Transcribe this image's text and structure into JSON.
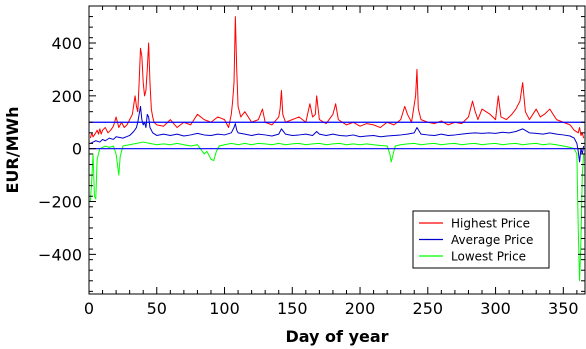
{
  "chart_data": {
    "type": "line",
    "title": "",
    "xlabel": "Day of year",
    "ylabel": "EUR/MWh",
    "xlim": [
      0,
      366
    ],
    "ylim": [
      -550,
      540
    ],
    "x_ticks": [
      0,
      50,
      100,
      150,
      200,
      250,
      300,
      350
    ],
    "y_ticks": [
      -400,
      -200,
      0,
      200,
      400
    ],
    "x_tick_labels": [
      "0",
      "50",
      "100",
      "150",
      "200",
      "250",
      "300",
      "350"
    ],
    "y_tick_labels": [
      "−400",
      "−200",
      "0",
      "200",
      "400"
    ],
    "grid": false,
    "legend_position": "lower-right",
    "reference_lines": [
      {
        "y": 100,
        "color": "#0000ff"
      },
      {
        "y": 0,
        "color": "#0000ff"
      }
    ],
    "series": [
      {
        "name": "Highest Price",
        "color": "#ff0000",
        "points": [
          [
            1,
            40
          ],
          [
            2,
            60
          ],
          [
            3,
            45
          ],
          [
            5,
            60
          ],
          [
            6,
            70
          ],
          [
            7,
            55
          ],
          [
            8,
            75
          ],
          [
            9,
            55
          ],
          [
            10,
            70
          ],
          [
            12,
            80
          ],
          [
            14,
            60
          ],
          [
            16,
            70
          ],
          [
            18,
            85
          ],
          [
            20,
            120
          ],
          [
            22,
            80
          ],
          [
            24,
            100
          ],
          [
            26,
            80
          ],
          [
            28,
            90
          ],
          [
            30,
            110
          ],
          [
            32,
            130
          ],
          [
            34,
            200
          ],
          [
            35,
            160
          ],
          [
            36,
            140
          ],
          [
            37,
            250
          ],
          [
            38,
            380
          ],
          [
            39,
            350
          ],
          [
            40,
            250
          ],
          [
            41,
            200
          ],
          [
            42,
            220
          ],
          [
            43,
            300
          ],
          [
            44,
            400
          ],
          [
            45,
            250
          ],
          [
            46,
            150
          ],
          [
            47,
            120
          ],
          [
            48,
            100
          ],
          [
            50,
            90
          ],
          [
            55,
            85
          ],
          [
            60,
            110
          ],
          [
            65,
            80
          ],
          [
            70,
            100
          ],
          [
            75,
            90
          ],
          [
            80,
            130
          ],
          [
            85,
            110
          ],
          [
            90,
            100
          ],
          [
            95,
            120
          ],
          [
            100,
            110
          ],
          [
            103,
            80
          ],
          [
            105,
            130
          ],
          [
            106,
            180
          ],
          [
            107,
            250
          ],
          [
            108,
            500
          ],
          [
            109,
            300
          ],
          [
            110,
            160
          ],
          [
            112,
            120
          ],
          [
            115,
            140
          ],
          [
            120,
            100
          ],
          [
            125,
            110
          ],
          [
            128,
            150
          ],
          [
            130,
            100
          ],
          [
            135,
            90
          ],
          [
            140,
            120
          ],
          [
            141,
            150
          ],
          [
            142,
            220
          ],
          [
            143,
            130
          ],
          [
            145,
            100
          ],
          [
            150,
            110
          ],
          [
            155,
            120
          ],
          [
            160,
            100
          ],
          [
            163,
            170
          ],
          [
            165,
            120
          ],
          [
            167,
            130
          ],
          [
            168,
            200
          ],
          [
            170,
            110
          ],
          [
            175,
            95
          ],
          [
            180,
            130
          ],
          [
            182,
            170
          ],
          [
            184,
            110
          ],
          [
            190,
            90
          ],
          [
            195,
            100
          ],
          [
            200,
            85
          ],
          [
            205,
            95
          ],
          [
            210,
            90
          ],
          [
            215,
            80
          ],
          [
            220,
            100
          ],
          [
            225,
            90
          ],
          [
            230,
            110
          ],
          [
            233,
            160
          ],
          [
            235,
            130
          ],
          [
            238,
            100
          ],
          [
            241,
            200
          ],
          [
            242,
            300
          ],
          [
            243,
            150
          ],
          [
            245,
            110
          ],
          [
            250,
            100
          ],
          [
            255,
            95
          ],
          [
            260,
            105
          ],
          [
            265,
            90
          ],
          [
            270,
            100
          ],
          [
            275,
            95
          ],
          [
            280,
            120
          ],
          [
            283,
            180
          ],
          [
            285,
            140
          ],
          [
            287,
            110
          ],
          [
            290,
            150
          ],
          [
            293,
            140
          ],
          [
            296,
            130
          ],
          [
            300,
            110
          ],
          [
            302,
            200
          ],
          [
            304,
            120
          ],
          [
            308,
            110
          ],
          [
            312,
            130
          ],
          [
            315,
            150
          ],
          [
            318,
            180
          ],
          [
            320,
            250
          ],
          [
            322,
            140
          ],
          [
            325,
            110
          ],
          [
            330,
            150
          ],
          [
            333,
            120
          ],
          [
            336,
            130
          ],
          [
            340,
            150
          ],
          [
            345,
            110
          ],
          [
            350,
            100
          ],
          [
            355,
            90
          ],
          [
            358,
            70
          ],
          [
            361,
            60
          ],
          [
            362,
            80
          ],
          [
            363,
            50
          ],
          [
            364,
            60
          ],
          [
            365,
            40
          ]
        ]
      },
      {
        "name": "Average Price",
        "color": "#0000cc",
        "points": [
          [
            1,
            20
          ],
          [
            3,
            25
          ],
          [
            5,
            30
          ],
          [
            8,
            25
          ],
          [
            10,
            35
          ],
          [
            12,
            30
          ],
          [
            15,
            40
          ],
          [
            18,
            35
          ],
          [
            20,
            45
          ],
          [
            25,
            40
          ],
          [
            30,
            50
          ],
          [
            33,
            65
          ],
          [
            35,
            80
          ],
          [
            36,
            100
          ],
          [
            37,
            130
          ],
          [
            38,
            160
          ],
          [
            39,
            110
          ],
          [
            40,
            90
          ],
          [
            41,
            100
          ],
          [
            42,
            80
          ],
          [
            43,
            130
          ],
          [
            44,
            120
          ],
          [
            45,
            80
          ],
          [
            47,
            60
          ],
          [
            50,
            50
          ],
          [
            55,
            55
          ],
          [
            60,
            50
          ],
          [
            65,
            55
          ],
          [
            70,
            48
          ],
          [
            75,
            52
          ],
          [
            80,
            58
          ],
          [
            85,
            52
          ],
          [
            90,
            50
          ],
          [
            95,
            55
          ],
          [
            100,
            52
          ],
          [
            105,
            60
          ],
          [
            107,
            80
          ],
          [
            108,
            95
          ],
          [
            109,
            70
          ],
          [
            110,
            60
          ],
          [
            115,
            55
          ],
          [
            120,
            50
          ],
          [
            125,
            55
          ],
          [
            130,
            52
          ],
          [
            135,
            48
          ],
          [
            140,
            55
          ],
          [
            142,
            75
          ],
          [
            145,
            55
          ],
          [
            150,
            50
          ],
          [
            155,
            52
          ],
          [
            160,
            55
          ],
          [
            165,
            50
          ],
          [
            168,
            65
          ],
          [
            170,
            55
          ],
          [
            175,
            50
          ],
          [
            180,
            55
          ],
          [
            185,
            50
          ],
          [
            190,
            48
          ],
          [
            195,
            52
          ],
          [
            200,
            45
          ],
          [
            205,
            48
          ],
          [
            210,
            50
          ],
          [
            215,
            45
          ],
          [
            220,
            48
          ],
          [
            225,
            50
          ],
          [
            230,
            52
          ],
          [
            235,
            55
          ],
          [
            240,
            60
          ],
          [
            242,
            80
          ],
          [
            245,
            55
          ],
          [
            250,
            52
          ],
          [
            255,
            50
          ],
          [
            260,
            55
          ],
          [
            265,
            50
          ],
          [
            270,
            52
          ],
          [
            275,
            55
          ],
          [
            280,
            58
          ],
          [
            285,
            60
          ],
          [
            290,
            58
          ],
          [
            295,
            60
          ],
          [
            300,
            58
          ],
          [
            305,
            62
          ],
          [
            310,
            60
          ],
          [
            315,
            65
          ],
          [
            320,
            75
          ],
          [
            325,
            60
          ],
          [
            330,
            58
          ],
          [
            335,
            55
          ],
          [
            340,
            60
          ],
          [
            345,
            55
          ],
          [
            350,
            52
          ],
          [
            355,
            48
          ],
          [
            358,
            40
          ],
          [
            360,
            20
          ],
          [
            361,
            -10
          ],
          [
            362,
            -50
          ],
          [
            363,
            0
          ],
          [
            364,
            -20
          ],
          [
            365,
            10
          ]
        ]
      },
      {
        "name": "Lowest Price",
        "color": "#00ff00",
        "points": [
          [
            1,
            -200
          ],
          [
            2,
            -120
          ],
          [
            3,
            -20
          ],
          [
            4,
            -180
          ],
          [
            5,
            -190
          ],
          [
            6,
            -40
          ],
          [
            8,
            0
          ],
          [
            10,
            5
          ],
          [
            12,
            10
          ],
          [
            15,
            5
          ],
          [
            18,
            10
          ],
          [
            20,
            -20
          ],
          [
            21,
            -60
          ],
          [
            22,
            -100
          ],
          [
            23,
            -30
          ],
          [
            25,
            10
          ],
          [
            30,
            15
          ],
          [
            35,
            20
          ],
          [
            40,
            25
          ],
          [
            45,
            20
          ],
          [
            50,
            15
          ],
          [
            55,
            18
          ],
          [
            60,
            15
          ],
          [
            65,
            20
          ],
          [
            70,
            15
          ],
          [
            75,
            10
          ],
          [
            80,
            15
          ],
          [
            85,
            -20
          ],
          [
            87,
            -10
          ],
          [
            90,
            -40
          ],
          [
            92,
            -45
          ],
          [
            94,
            -10
          ],
          [
            96,
            10
          ],
          [
            100,
            15
          ],
          [
            105,
            20
          ],
          [
            110,
            15
          ],
          [
            115,
            20
          ],
          [
            120,
            15
          ],
          [
            125,
            20
          ],
          [
            130,
            18
          ],
          [
            135,
            15
          ],
          [
            140,
            20
          ],
          [
            145,
            15
          ],
          [
            150,
            18
          ],
          [
            155,
            20
          ],
          [
            160,
            15
          ],
          [
            165,
            18
          ],
          [
            170,
            20
          ],
          [
            175,
            15
          ],
          [
            180,
            18
          ],
          [
            185,
            20
          ],
          [
            190,
            15
          ],
          [
            195,
            18
          ],
          [
            200,
            15
          ],
          [
            205,
            18
          ],
          [
            210,
            15
          ],
          [
            215,
            12
          ],
          [
            220,
            10
          ],
          [
            222,
            -20
          ],
          [
            223,
            -50
          ],
          [
            224,
            -30
          ],
          [
            226,
            10
          ],
          [
            230,
            15
          ],
          [
            235,
            18
          ],
          [
            240,
            20
          ],
          [
            245,
            15
          ],
          [
            250,
            18
          ],
          [
            255,
            20
          ],
          [
            260,
            15
          ],
          [
            265,
            18
          ],
          [
            270,
            20
          ],
          [
            275,
            15
          ],
          [
            280,
            18
          ],
          [
            285,
            20
          ],
          [
            290,
            15
          ],
          [
            295,
            18
          ],
          [
            300,
            20
          ],
          [
            305,
            15
          ],
          [
            310,
            18
          ],
          [
            315,
            20
          ],
          [
            320,
            15
          ],
          [
            325,
            18
          ],
          [
            330,
            20
          ],
          [
            335,
            15
          ],
          [
            340,
            18
          ],
          [
            345,
            15
          ],
          [
            350,
            10
          ],
          [
            355,
            5
          ],
          [
            358,
            0
          ],
          [
            360,
            -20
          ],
          [
            361,
            -300
          ],
          [
            362,
            -500
          ],
          [
            363,
            -350
          ],
          [
            364,
            -100
          ],
          [
            365,
            -20
          ]
        ]
      }
    ]
  }
}
